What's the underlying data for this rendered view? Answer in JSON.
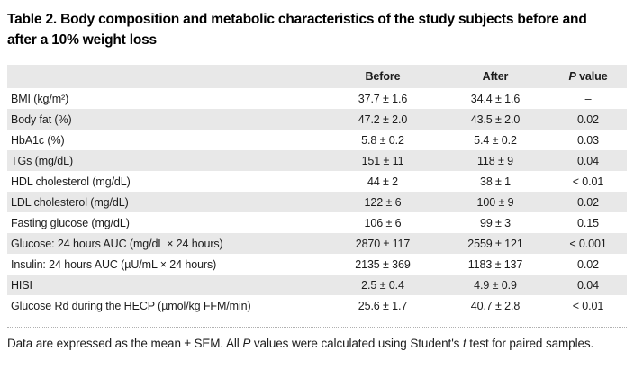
{
  "title": "Table 2. Body composition and metabolic characteristics of the study subjects before and after a 10% weight loss",
  "table": {
    "header": {
      "before": "Before",
      "after": "After",
      "p_italic": "P",
      "p_rest": " value"
    },
    "rows": [
      {
        "label": "BMI (kg/m²)",
        "before": "37.7 ± 1.6",
        "after": "34.4 ± 1.6",
        "p": "–"
      },
      {
        "label": "Body fat (%)",
        "before": "47.2 ± 2.0",
        "after": "43.5 ± 2.0",
        "p": "0.02"
      },
      {
        "label": "HbA1c (%)",
        "before": "5.8 ± 0.2",
        "after": "5.4 ± 0.2",
        "p": "0.03"
      },
      {
        "label": "TGs (mg/dL)",
        "before": "151 ± 11",
        "after": "118 ± 9",
        "p": "0.04"
      },
      {
        "label": "HDL cholesterol (mg/dL)",
        "before": "44 ± 2",
        "after": "38 ± 1",
        "p": "< 0.01"
      },
      {
        "label": "LDL cholesterol (mg/dL)",
        "before": "122 ± 6",
        "after": "100 ± 9",
        "p": "0.02"
      },
      {
        "label": "Fasting glucose (mg/dL)",
        "before": "106 ± 6",
        "after": "99 ± 3",
        "p": "0.15"
      },
      {
        "label": "Glucose: 24 hours AUC (mg/dL × 24 hours)",
        "before": "2870 ± 117",
        "after": "2559 ± 121",
        "p": "< 0.001"
      },
      {
        "label": "Insulin: 24 hours AUC (µU/mL × 24 hours)",
        "before": "2135 ± 369",
        "after": "1183 ± 137",
        "p": "0.02"
      },
      {
        "label": "HISI",
        "before": "2.5 ± 0.4",
        "after": "4.9 ± 0.9",
        "p": "0.04"
      },
      {
        "label": "Glucose Rd during the HECP (µmol/kg FFM/min)",
        "before": "25.6 ± 1.7",
        "after": "40.7 ± 2.8",
        "p": "< 0.01"
      }
    ]
  },
  "footnote": {
    "parts": [
      "Data are expressed as the mean ± SEM. All ",
      "P",
      " values were calculated using Student's ",
      "t",
      " test for paired samples."
    ]
  },
  "colors": {
    "stripe": "#e8e8e8",
    "text": "#1c1c1c",
    "title": "#000000"
  }
}
